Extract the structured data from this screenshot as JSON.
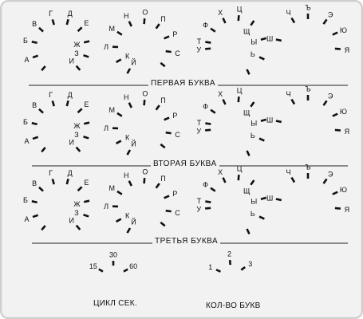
{
  "rows": [
    {
      "caption": "ПЕРВАЯ БУКВА"
    },
    {
      "caption": "ВТОРАЯ БУКВА"
    },
    {
      "caption": "ТРЕТЬЯ БУКВА"
    }
  ],
  "dials": [
    {
      "id": "dial-1",
      "marks": [
        {
          "t": "-",
          "k": "tick"
        },
        {
          "t": "А",
          "k": "label"
        },
        {
          "t": "Б",
          "k": "label"
        },
        {
          "t": "В",
          "k": "label"
        },
        {
          "t": "Г",
          "k": "label"
        },
        {
          "t": "Д",
          "k": "label"
        },
        {
          "t": "Е",
          "k": "label"
        },
        {
          "t": "Ж",
          "k": "label"
        },
        {
          "t": "З",
          "k": "label"
        },
        {
          "t": "И",
          "k": "label"
        }
      ]
    },
    {
      "id": "dial-2",
      "marks": [
        {
          "t": "Й",
          "k": "label"
        },
        {
          "t": "К",
          "k": "label"
        },
        {
          "t": "Л",
          "k": "label"
        },
        {
          "t": "М",
          "k": "label"
        },
        {
          "t": "Н",
          "k": "label"
        },
        {
          "t": "О",
          "k": "label"
        },
        {
          "t": "П",
          "k": "label"
        },
        {
          "t": "Р",
          "k": "label"
        },
        {
          "t": "С",
          "k": "label"
        },
        {
          "t": "-",
          "k": "tick"
        }
      ]
    },
    {
      "id": "dial-3",
      "marks": [
        {
          "t": "У",
          "k": "label"
        },
        {
          "t": "Т",
          "k": "label"
        },
        {
          "t": "Ф",
          "k": "label"
        },
        {
          "t": "Х",
          "k": "label"
        },
        {
          "t": "Ц",
          "k": "label"
        },
        {
          "t": "Щ",
          "k": "label"
        },
        {
          "t": "Ы",
          "k": "label"
        },
        {
          "t": "Ь",
          "k": "label"
        },
        {
          "t": "-",
          "k": "tick"
        }
      ]
    },
    {
      "id": "dial-4",
      "marks": [
        {
          "t": "Ш",
          "k": "label"
        },
        {
          "t": "Ч",
          "k": "label"
        },
        {
          "t": "Ъ",
          "k": "label"
        },
        {
          "t": "Э",
          "k": "label"
        },
        {
          "t": "Ю",
          "k": "label"
        },
        {
          "t": "Я",
          "k": "label"
        }
      ]
    }
  ],
  "cycle_selector": {
    "values": [
      "15",
      "30",
      "60"
    ],
    "label": "ЦИКЛ СЕК."
  },
  "count_selector": {
    "values": [
      "1",
      "2",
      "3"
    ],
    "label": "КОЛ-ВО БУКВ"
  }
}
